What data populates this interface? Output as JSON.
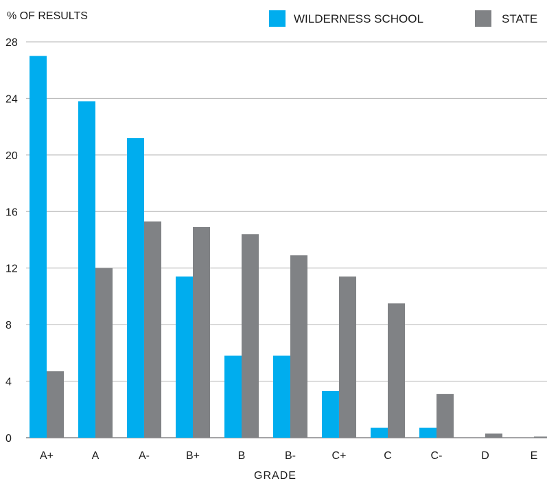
{
  "chart_data": {
    "type": "bar",
    "title": "",
    "ylabel": "% OF RESULTS",
    "xlabel": "GRADE",
    "ylim": [
      0,
      28
    ],
    "yticks": [
      0,
      4,
      8,
      12,
      16,
      20,
      24,
      28
    ],
    "grid": true,
    "legend_position": "top-right",
    "categories": [
      "A+",
      "A",
      "A-",
      "B+",
      "B",
      "B-",
      "C+",
      "C",
      "C-",
      "D",
      "E"
    ],
    "series": [
      {
        "name": "WILDERNESS SCHOOL",
        "color": "#00adee",
        "values": [
          27.0,
          23.8,
          21.2,
          11.4,
          5.8,
          5.8,
          3.3,
          0.7,
          0.7,
          0,
          0
        ]
      },
      {
        "name": "STATE",
        "color": "#808285",
        "values": [
          4.7,
          12.0,
          15.3,
          14.9,
          14.4,
          12.9,
          11.4,
          9.5,
          3.1,
          0.3,
          0.08
        ]
      }
    ]
  }
}
